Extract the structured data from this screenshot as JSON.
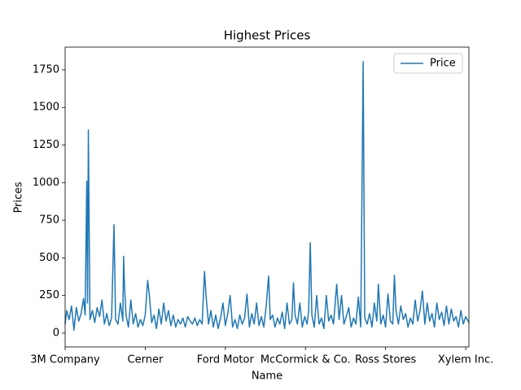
{
  "chart_data": {
    "type": "line",
    "title": "Highest Prices",
    "xlabel": "Name",
    "ylabel": "Prices",
    "x": [
      0,
      2,
      5,
      8,
      11,
      14,
      17,
      20,
      23,
      25,
      27,
      28,
      29,
      31,
      34,
      37,
      40,
      43,
      46,
      49,
      52,
      55,
      58,
      61,
      63,
      66,
      69,
      72,
      73,
      74,
      76,
      79,
      82,
      85,
      88,
      91,
      94,
      97,
      100,
      103,
      105,
      108,
      111,
      114,
      117,
      120,
      123,
      126,
      129,
      132,
      135,
      138,
      141,
      144,
      147,
      150,
      153,
      156,
      159,
      162,
      165,
      168,
      171,
      174,
      176,
      179,
      182,
      185,
      188,
      191,
      194,
      197,
      200,
      203,
      206,
      209,
      212,
      215,
      218,
      221,
      224,
      227,
      230,
      233,
      236,
      239,
      242,
      245,
      248,
      251,
      254,
      256,
      259,
      262,
      265,
      268,
      271,
      274,
      277,
      280,
      283,
      285,
      287,
      290,
      293,
      296,
      299,
      302,
      304,
      306,
      308,
      311,
      314,
      317,
      320,
      323,
      326,
      329,
      332,
      335,
      339,
      342,
      345,
      348,
      351,
      354,
      357,
      360,
      363,
      366,
      369,
      372,
      374,
      377,
      380,
      383,
      386,
      389,
      391,
      394,
      397,
      400,
      403,
      406,
      409,
      411,
      413,
      416,
      419,
      422,
      425,
      428,
      431,
      434,
      437,
      440,
      443,
      446,
      449,
      452,
      455,
      458,
      461,
      464,
      467,
      470,
      473,
      476,
      479,
      482,
      485,
      488,
      491,
      494,
      497,
      500,
      504
    ],
    "series": [
      {
        "name": "Price",
        "color": "#1f77b4",
        "values": [
          60,
          150,
          90,
          180,
          20,
          170,
          80,
          130,
          230,
          120,
          1010,
          200,
          1350,
          90,
          150,
          70,
          170,
          110,
          220,
          60,
          130,
          50,
          100,
          720,
          90,
          60,
          200,
          80,
          510,
          330,
          120,
          40,
          220,
          60,
          130,
          40,
          90,
          50,
          120,
          350,
          260,
          70,
          120,
          30,
          160,
          60,
          200,
          80,
          150,
          50,
          120,
          40,
          90,
          60,
          100,
          40,
          110,
          80,
          60,
          100,
          50,
          90,
          60,
          410,
          240,
          60,
          150,
          40,
          120,
          30,
          100,
          200,
          50,
          130,
          250,
          40,
          90,
          30,
          120,
          60,
          100,
          260,
          40,
          130,
          60,
          200,
          50,
          110,
          40,
          180,
          380,
          90,
          120,
          40,
          100,
          60,
          140,
          30,
          200,
          60,
          90,
          335,
          120,
          60,
          200,
          40,
          110,
          60,
          150,
          600,
          120,
          40,
          250,
          60,
          100,
          30,
          250,
          80,
          120,
          60,
          325,
          90,
          250,
          60,
          110,
          170,
          40,
          100,
          60,
          240,
          40,
          1805,
          100,
          60,
          130,
          40,
          200,
          80,
          325,
          60,
          120,
          40,
          260,
          80,
          60,
          385,
          150,
          60,
          180,
          90,
          130,
          40,
          100,
          60,
          220,
          80,
          150,
          280,
          60,
          200,
          80,
          130,
          40,
          200,
          90,
          140,
          50,
          180,
          60,
          160,
          80,
          110,
          40,
          150,
          60,
          110,
          70
        ]
      }
    ],
    "xlim": [
      0,
      504
    ],
    "xticks": [
      {
        "value": 0,
        "label": "3M Company"
      },
      {
        "value": 100,
        "label": "Cerner"
      },
      {
        "value": 200,
        "label": "Ford Motor"
      },
      {
        "value": 300,
        "label": "McCormick & Co."
      },
      {
        "value": 400,
        "label": "Ross Stores"
      },
      {
        "value": 500,
        "label": "Xylem Inc."
      }
    ],
    "ylim": [
      -92,
      1901
    ],
    "yticks": [
      0,
      250,
      500,
      750,
      1000,
      1250,
      1500,
      1750
    ],
    "grid": false,
    "legend": "upper right"
  }
}
